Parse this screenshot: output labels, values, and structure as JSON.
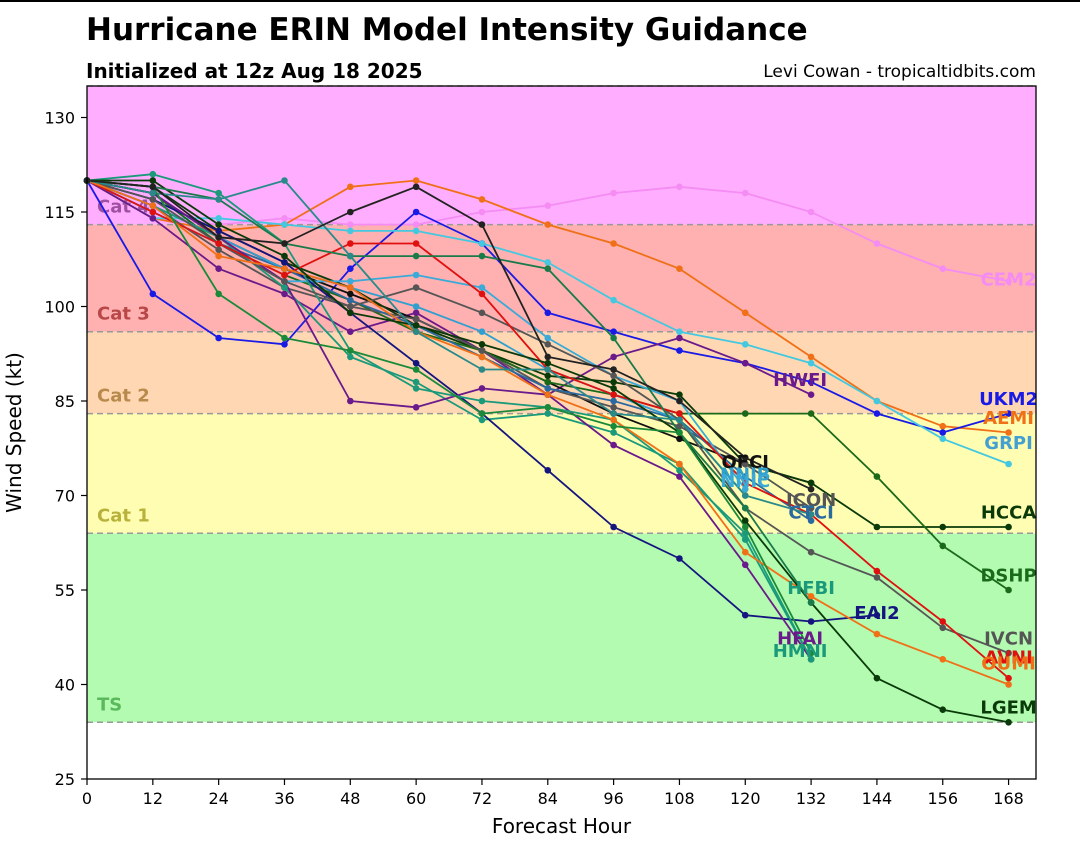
{
  "header": {
    "title": "Hurricane ERIN Model Intensity Guidance",
    "subtitle": "Initialized at 12z Aug 18 2025",
    "credit": "Levi Cowan - tropicaltidbits.com"
  },
  "chart_data": {
    "type": "line",
    "xlabel": "Forecast Hour",
    "ylabel": "Wind Speed (kt)",
    "xlim": [
      0,
      173
    ],
    "ylim": [
      25,
      135
    ],
    "xticks": [
      0,
      12,
      24,
      36,
      48,
      60,
      72,
      84,
      96,
      108,
      120,
      132,
      144,
      156,
      168
    ],
    "yticks": [
      25,
      40,
      55,
      70,
      85,
      100,
      115,
      130
    ],
    "grid": false,
    "legend": "none",
    "bands": [
      {
        "label": "TS",
        "from": 34,
        "to": 64,
        "color": "#b3fbb0",
        "label_color": "#5cb85c"
      },
      {
        "label": "Cat 1",
        "from": 64,
        "to": 83,
        "color": "#fffdb2",
        "label_color": "#b8b23c"
      },
      {
        "label": "Cat 2",
        "from": 83,
        "to": 96,
        "color": "#ffd8b3",
        "label_color": "#b88a4c"
      },
      {
        "label": "Cat 3",
        "from": 96,
        "to": 113,
        "color": "#ffb0b0",
        "label_color": "#b84848"
      },
      {
        "label": "Cat 4",
        "from": 113,
        "to": 135,
        "color": "#ffaeff",
        "label_color": "#a050a0"
      }
    ],
    "series": [
      {
        "name": "CEM2",
        "color": "#f48cf4",
        "label_color": "#f48cf4",
        "label_x": 168,
        "label_y": 104,
        "x": [
          0,
          12,
          24,
          36,
          48,
          60,
          72,
          84,
          96,
          108,
          120,
          132,
          144,
          156,
          168
        ],
        "y": [
          120,
          114,
          113,
          114,
          113,
          113,
          115,
          116,
          118,
          119,
          118,
          115,
          110,
          106,
          104
        ]
      },
      {
        "name": "AEMI",
        "color": "#f07018",
        "label_color": "#f07018",
        "label_x": 168,
        "label_y": 82,
        "x": [
          0,
          12,
          24,
          36,
          48,
          60,
          72,
          84,
          96,
          108,
          120,
          132,
          144,
          156,
          168
        ],
        "y": [
          120,
          114,
          112,
          113,
          119,
          120,
          117,
          113,
          110,
          106,
          99,
          92,
          85,
          81,
          80
        ]
      },
      {
        "name": "UKM2",
        "color": "#1a1ae6",
        "label_color": "#1a1ae6",
        "label_x": 168,
        "label_y": 85,
        "x": [
          0,
          12,
          24,
          36,
          48,
          60,
          72,
          84,
          96,
          108,
          120,
          132,
          144,
          156,
          168
        ],
        "y": [
          120,
          102,
          95,
          94,
          106,
          115,
          110,
          99,
          96,
          93,
          91,
          88,
          83,
          80,
          83
        ]
      },
      {
        "name": "GRPI",
        "color": "#44c8e0",
        "label_color": "#44a0d0",
        "label_x": 168,
        "label_y": 78,
        "x": [
          0,
          12,
          24,
          36,
          48,
          60,
          72,
          84,
          96,
          108,
          120,
          132,
          144,
          156,
          168
        ],
        "y": [
          120,
          114,
          114,
          113,
          112,
          112,
          110,
          107,
          101,
          96,
          94,
          91,
          85,
          79,
          75
        ]
      },
      {
        "name": "HWFI",
        "color": "#6a1a8a",
        "label_color": "#6a1a8a",
        "label_x": 130,
        "label_y": 88,
        "x": [
          0,
          12,
          24,
          36,
          48,
          60,
          72,
          84,
          96,
          108,
          120,
          132
        ],
        "y": [
          120,
          114,
          106,
          102,
          96,
          99,
          93,
          86,
          92,
          95,
          91,
          86
        ]
      },
      {
        "name": "OFCI",
        "color": "#111111",
        "label_color": "#111111",
        "label_x": 120,
        "label_y": 75,
        "x": [
          0,
          12,
          24,
          36,
          48,
          60,
          72,
          84,
          96,
          108,
          120,
          132
        ],
        "y": [
          120,
          118,
          111,
          106,
          102,
          98,
          93,
          88,
          83,
          79,
          75,
          72
        ]
      },
      {
        "name": "HCCA",
        "color": "#0a3a0a",
        "label_color": "#0a3a0a",
        "label_x": 168,
        "label_y": 67,
        "x": [
          0,
          12,
          24,
          36,
          48,
          60,
          72,
          84,
          96,
          108,
          120,
          132,
          144,
          156,
          168
        ],
        "y": [
          120,
          119,
          112,
          107,
          103,
          97,
          93,
          89,
          88,
          86,
          75,
          72,
          65,
          65,
          65
        ]
      },
      {
        "name": "DSHP",
        "color": "#1a6a1a",
        "label_color": "#1a6a1a",
        "label_x": 168,
        "label_y": 57,
        "x": [
          0,
          12,
          24,
          36,
          48,
          60,
          72,
          84,
          96,
          108,
          120,
          132,
          144,
          156,
          168
        ],
        "y": [
          120,
          118,
          110,
          105,
          101,
          96,
          93,
          88,
          86,
          83,
          83,
          83,
          73,
          62,
          55
        ]
      },
      {
        "name": "ICON",
        "color": "#555555",
        "label_color": "#555555",
        "label_x": 132,
        "label_y": 69,
        "x": [
          0,
          12,
          24,
          36,
          48,
          60,
          72,
          84,
          96,
          108,
          120,
          132
        ],
        "y": [
          120,
          116,
          109,
          103,
          100,
          98,
          93,
          87,
          84,
          81,
          75,
          68
        ]
      },
      {
        "name": "CTCI",
        "color": "#2a6aa0",
        "label_color": "#2a6aa0",
        "label_x": 132,
        "label_y": 67,
        "x": [
          0,
          12,
          24,
          36,
          48,
          60,
          72,
          84,
          96,
          108,
          120,
          132
        ],
        "y": [
          120,
          115,
          110,
          106,
          101,
          97,
          92,
          87,
          85,
          82,
          73,
          66
        ]
      },
      {
        "name": "NNIB",
        "color": "#30a0d0",
        "label_color": "#30a0d0",
        "label_x": 120,
        "label_y": 73,
        "x": [
          0,
          12,
          24,
          36,
          48,
          60,
          72,
          84,
          96,
          108,
          120
        ],
        "y": [
          120,
          116,
          111,
          106,
          103,
          100,
          96,
          90,
          86,
          82,
          70
        ]
      },
      {
        "name": "NNIC",
        "color": "#3aaad8",
        "label_color": "#3aaad8",
        "label_x": 120,
        "label_y": 72,
        "x": [
          0,
          12,
          24,
          36,
          48,
          60,
          72,
          84,
          96,
          108,
          120
        ],
        "y": [
          120,
          115,
          110,
          104,
          104,
          105,
          103,
          95,
          89,
          85,
          71
        ]
      },
      {
        "name": "HFBI",
        "color": "#1a9a7a",
        "label_color": "#1a9a7a",
        "label_x": 132,
        "label_y": 55,
        "x": [
          0,
          12,
          24,
          36,
          48,
          60,
          72,
          84,
          96,
          108,
          120,
          132
        ],
        "y": [
          120,
          116,
          111,
          103,
          92,
          88,
          82,
          83,
          80,
          75,
          63,
          44
        ]
      },
      {
        "name": "EAI2",
        "color": "#151580",
        "label_color": "#151580",
        "label_x": 144,
        "label_y": 51,
        "x": [
          0,
          12,
          24,
          36,
          48,
          60,
          72,
          84,
          96,
          108,
          120,
          132,
          144
        ],
        "y": [
          120,
          117,
          112,
          107,
          99,
          91,
          83,
          74,
          65,
          60,
          51,
          50,
          51
        ]
      },
      {
        "name": "HFAI",
        "color": "#6a1a8a",
        "label_color": "#6a1a8a",
        "label_x": 130,
        "label_y": 47,
        "x": [
          0,
          12,
          24,
          36,
          48,
          60,
          72,
          84,
          96,
          108,
          120,
          132
        ],
        "y": [
          120,
          118,
          111,
          104,
          85,
          84,
          87,
          86,
          78,
          73,
          59,
          44
        ]
      },
      {
        "name": "HMNI",
        "color": "#1a9a7a",
        "label_color": "#1a9a7a",
        "label_x": 130,
        "label_y": 45,
        "x": [
          0,
          12,
          24,
          36,
          48,
          60,
          72,
          84,
          96,
          108,
          120,
          132
        ],
        "y": [
          120,
          121,
          118,
          110,
          93,
          87,
          85,
          84,
          82,
          74,
          64,
          44
        ]
      },
      {
        "name": "IVCN",
        "color": "#555555",
        "label_color": "#555555",
        "label_x": 168,
        "label_y": 47,
        "x": [
          0,
          12,
          24,
          36,
          48,
          60,
          72,
          84,
          96,
          108,
          120,
          132,
          144,
          156,
          168
        ],
        "y": [
          120,
          117,
          110,
          104,
          100,
          103,
          99,
          94,
          89,
          82,
          68,
          61,
          57,
          49,
          45
        ]
      },
      {
        "name": "AVNI",
        "color": "#e01010",
        "label_color": "#e01010",
        "label_x": 168,
        "label_y": 44,
        "x": [
          0,
          12,
          24,
          36,
          48,
          60,
          72,
          84,
          96,
          108,
          120,
          132,
          144,
          156,
          168
        ],
        "y": [
          120,
          115,
          110,
          105,
          110,
          110,
          102,
          90,
          86,
          83,
          72,
          67,
          58,
          50,
          41
        ]
      },
      {
        "name": "OUMI",
        "color": "#f07018",
        "label_color": "#f07018",
        "label_x": 168,
        "label_y": 43,
        "x": [
          0,
          12,
          24,
          36,
          48,
          60,
          72,
          84,
          96,
          108,
          120,
          132,
          144,
          156,
          168
        ],
        "y": [
          120,
          116,
          108,
          106,
          103,
          96,
          92,
          86,
          82,
          75,
          61,
          54,
          48,
          44,
          40
        ]
      },
      {
        "name": "LGEM",
        "color": "#0a3a0a",
        "label_color": "#0a3a0a",
        "label_x": 168,
        "label_y": 36,
        "x": [
          0,
          12,
          24,
          36,
          48,
          60,
          72,
          84,
          96,
          108,
          120,
          132,
          144,
          156,
          168
        ],
        "y": [
          120,
          120,
          113,
          108,
          99,
          97,
          94,
          91,
          87,
          80,
          66,
          53,
          41,
          36,
          34
        ]
      },
      {
        "name": "",
        "color": "#1a7a4a",
        "x": [
          0,
          12,
          24,
          36,
          48,
          60,
          72,
          84,
          96,
          108,
          120,
          132
        ],
        "y": [
          120,
          119,
          117,
          110,
          108,
          108,
          108,
          106,
          95,
          80,
          68,
          53
        ]
      },
      {
        "name": "",
        "color": "#2a8a8a",
        "x": [
          0,
          12,
          24,
          36,
          48,
          60,
          72,
          84,
          96,
          108,
          120,
          132
        ],
        "y": [
          120,
          118,
          117,
          120,
          108,
          96,
          90,
          90,
          83,
          82,
          70,
          67
        ]
      },
      {
        "name": "",
        "color": "#1a8a3a",
        "x": [
          0,
          12,
          24,
          36,
          48,
          60,
          72,
          84,
          96,
          108,
          120,
          132
        ],
        "y": [
          120,
          119,
          102,
          95,
          93,
          90,
          83,
          84,
          81,
          80,
          65,
          45
        ]
      },
      {
        "name": "",
        "color": "#222222",
        "x": [
          0,
          12,
          24,
          36,
          48,
          60,
          72,
          84,
          96,
          108,
          120,
          132
        ],
        "y": [
          120,
          119,
          111,
          110,
          115,
          119,
          113,
          92,
          90,
          85,
          76,
          71
        ]
      }
    ]
  }
}
